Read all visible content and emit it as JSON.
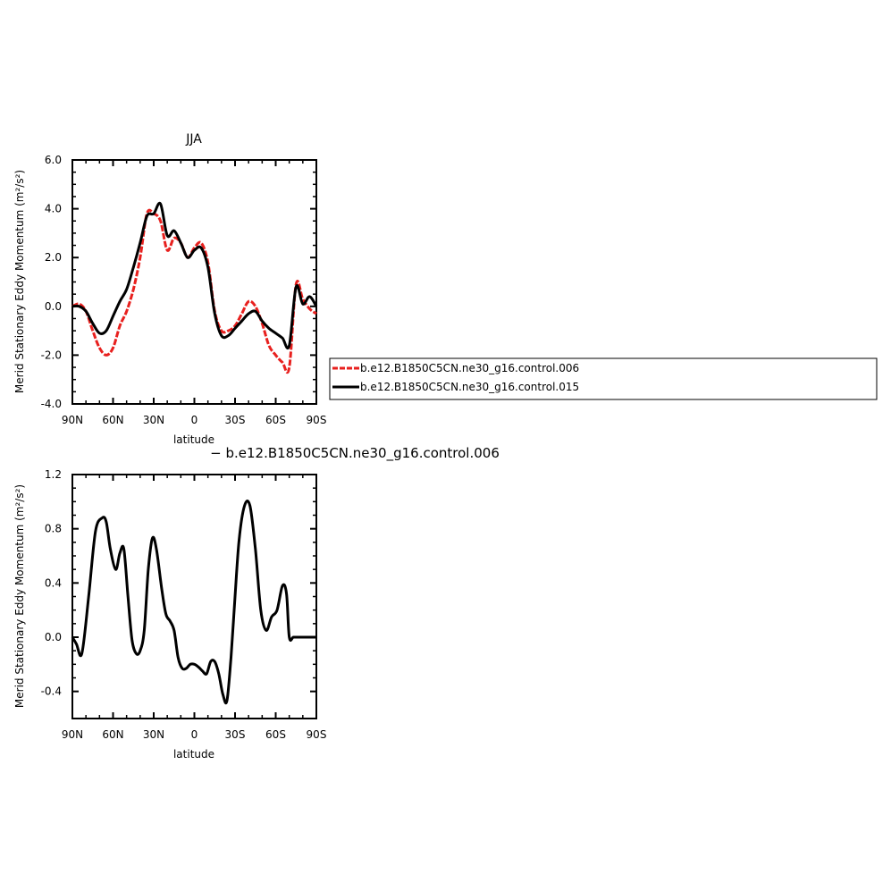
{
  "chart_data": [
    {
      "type": "line",
      "title": "JJA",
      "xlabel": "latitude",
      "ylabel": "Merid Stationary Eddy Momentum (m²/s²)",
      "x_ticks": [
        "90N",
        "60N",
        "30N",
        "0",
        "30S",
        "60S",
        "90S"
      ],
      "y_ticks": [
        "-4.0",
        "-2.0",
        "0.0",
        "2.0",
        "4.0",
        "6.0"
      ],
      "xlim": [
        90,
        -90
      ],
      "ylim": [
        -4,
        6
      ],
      "legend_placement": "right",
      "series": [
        {
          "name": "b.e12.B1850C5CN.ne30_g16.control.006",
          "color": "#e8201e",
          "dash": "dashed",
          "x": [
            90,
            85,
            80,
            75,
            70,
            65,
            60,
            55,
            50,
            45,
            40,
            35,
            30,
            25,
            20,
            15,
            10,
            5,
            0,
            -5,
            -10,
            -15,
            -20,
            -25,
            -30,
            -35,
            -40,
            -45,
            -50,
            -55,
            -60,
            -65,
            -70,
            -75,
            -80,
            -85,
            -90
          ],
          "y": [
            0.0,
            0.1,
            -0.2,
            -1.0,
            -1.7,
            -2.0,
            -1.7,
            -0.8,
            -0.2,
            0.7,
            2.0,
            3.8,
            3.8,
            3.5,
            2.3,
            2.8,
            2.6,
            2.0,
            2.4,
            2.6,
            1.8,
            -0.2,
            -1.0,
            -1.0,
            -0.8,
            -0.3,
            0.2,
            0.0,
            -0.7,
            -1.6,
            -2.0,
            -2.3,
            -2.5,
            0.9,
            0.3,
            -0.1,
            -0.3
          ]
        },
        {
          "name": "b.e12.B1850C5CN.ne30_g16.control.015",
          "color": "#000000",
          "dash": "solid",
          "x": [
            90,
            85,
            80,
            75,
            70,
            65,
            60,
            55,
            50,
            45,
            40,
            35,
            30,
            25,
            20,
            15,
            10,
            5,
            0,
            -5,
            -10,
            -15,
            -20,
            -25,
            -30,
            -35,
            -40,
            -45,
            -50,
            -55,
            -60,
            -65,
            -70,
            -75,
            -80,
            -85,
            -90
          ],
          "y": [
            0.0,
            0.0,
            -0.2,
            -0.7,
            -1.1,
            -1.0,
            -0.4,
            0.2,
            0.7,
            1.6,
            2.6,
            3.7,
            3.8,
            4.2,
            2.9,
            3.1,
            2.6,
            2.0,
            2.3,
            2.4,
            1.6,
            -0.3,
            -1.2,
            -1.2,
            -0.9,
            -0.6,
            -0.3,
            -0.2,
            -0.6,
            -0.9,
            -1.1,
            -1.3,
            -1.6,
            0.8,
            0.1,
            0.4,
            0.0
          ]
        }
      ]
    },
    {
      "type": "line",
      "title": "− b.e12.B1850C5CN.ne30_g16.control.006",
      "xlabel": "latitude",
      "ylabel": "Merid Stationary Eddy Momentum (m²/s²)",
      "x_ticks": [
        "90N",
        "60N",
        "30N",
        "0",
        "30S",
        "60S",
        "90S"
      ],
      "y_ticks": [
        "-0.4",
        "0.0",
        "0.4",
        "0.8",
        "1.2"
      ],
      "xlim": [
        90,
        -90
      ],
      "ylim": [
        -0.6,
        1.2
      ],
      "series": [
        {
          "color": "#000000",
          "dash": "solid",
          "x": [
            90,
            87,
            83,
            78,
            73,
            68,
            65,
            62,
            58,
            55,
            52,
            49,
            46,
            43,
            40,
            37,
            34,
            31,
            28,
            24,
            21,
            18,
            15,
            12,
            9,
            6,
            3,
            0,
            -3,
            -6,
            -9,
            -12,
            -15,
            -18,
            -21,
            -24,
            -27,
            -30,
            -33,
            -37,
            -41,
            -45,
            -49,
            -53,
            -57,
            -61,
            -65,
            -68,
            -70,
            -73,
            -76,
            -79,
            -82,
            -85,
            -88,
            -90
          ],
          "y": [
            0.0,
            -0.05,
            -0.12,
            0.3,
            0.78,
            0.88,
            0.85,
            0.65,
            0.5,
            0.62,
            0.65,
            0.3,
            -0.02,
            -0.12,
            -0.1,
            0.05,
            0.5,
            0.73,
            0.65,
            0.35,
            0.17,
            0.12,
            0.05,
            -0.15,
            -0.23,
            -0.23,
            -0.2,
            -0.2,
            -0.22,
            -0.25,
            -0.27,
            -0.18,
            -0.18,
            -0.27,
            -0.42,
            -0.47,
            -0.15,
            0.3,
            0.72,
            0.97,
            0.97,
            0.65,
            0.2,
            0.05,
            0.15,
            0.2,
            0.38,
            0.32,
            0.0,
            0.0,
            0.0,
            0.0,
            0.0,
            0.0,
            0.0,
            0.0
          ]
        }
      ]
    }
  ]
}
